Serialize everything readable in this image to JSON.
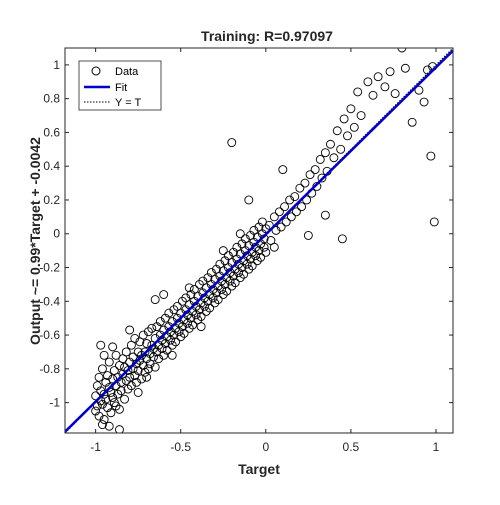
{
  "chart_data": {
    "type": "scatter",
    "title": "Training: R=0.97097",
    "xlabel": "Target",
    "ylabel": "Output ~= 0.99*Target + -0.0042",
    "xlim": [
      -1.18,
      1.1
    ],
    "ylim": [
      -1.18,
      1.1
    ],
    "xticks": [
      -1,
      -0.5,
      0,
      0.5,
      1
    ],
    "xtick_labels": [
      "-1",
      "-0.5",
      "0",
      "0.5",
      "1"
    ],
    "yticks": [
      -1,
      -0.8,
      -0.6,
      -0.4,
      -0.2,
      0,
      0.2,
      0.4,
      0.6,
      0.8,
      1
    ],
    "ytick_labels": [
      "-1",
      "-0.8",
      "-0.6",
      "-0.4",
      "-0.2",
      "0",
      "0.2",
      "0.4",
      "0.6",
      "0.8",
      "1"
    ],
    "grid": false,
    "legend_position": "top-left",
    "series": [
      {
        "name": "Data",
        "marker": "circle-open",
        "color": "#000000",
        "points": [
          [
            -1.0,
            -1.05
          ],
          [
            -1.0,
            -0.96
          ],
          [
            -0.99,
            -1.02
          ],
          [
            -0.99,
            -0.9
          ],
          [
            -0.98,
            -1.08
          ],
          [
            -0.98,
            -0.85
          ],
          [
            -0.97,
            -0.99
          ],
          [
            -0.97,
            -0.93
          ],
          [
            -0.96,
            -1.01
          ],
          [
            -0.96,
            -0.8
          ],
          [
            -0.95,
            -0.95
          ],
          [
            -0.95,
            -1.1
          ],
          [
            -0.94,
            -0.88
          ],
          [
            -0.94,
            -0.98
          ],
          [
            -0.93,
            -0.84
          ],
          [
            -0.93,
            -1.03
          ],
          [
            -0.92,
            -0.91
          ],
          [
            -0.92,
            -0.76
          ],
          [
            -0.91,
            -0.94
          ],
          [
            -0.91,
            -1.06
          ],
          [
            -0.9,
            -0.86
          ],
          [
            -0.9,
            -0.97
          ],
          [
            -0.89,
            -0.81
          ],
          [
            -0.89,
            -1.0
          ],
          [
            -0.88,
            -0.9
          ],
          [
            -0.88,
            -0.72
          ],
          [
            -0.87,
            -0.95
          ],
          [
            -0.87,
            -0.85
          ],
          [
            -0.86,
            -0.78
          ],
          [
            -0.86,
            -1.04
          ],
          [
            -0.85,
            -0.88
          ],
          [
            -0.85,
            -0.93
          ],
          [
            -0.84,
            -0.74
          ],
          [
            -0.84,
            -0.83
          ],
          [
            -0.83,
            -0.98
          ],
          [
            -0.83,
            -0.79
          ],
          [
            -0.82,
            -0.87
          ],
          [
            -0.82,
            -0.7
          ],
          [
            -0.81,
            -0.92
          ],
          [
            -0.81,
            -0.81
          ],
          [
            -0.8,
            -0.76
          ],
          [
            -0.8,
            -0.85
          ],
          [
            -0.79,
            -0.66
          ],
          [
            -0.79,
            -0.9
          ],
          [
            -0.78,
            -0.8
          ],
          [
            -0.78,
            -0.73
          ],
          [
            -0.77,
            -0.84
          ],
          [
            -0.77,
            -0.62
          ],
          [
            -0.76,
            -0.77
          ],
          [
            -0.76,
            -0.88
          ],
          [
            -0.75,
            -0.7
          ],
          [
            -0.75,
            -0.81
          ],
          [
            -0.74,
            -0.75
          ],
          [
            -0.74,
            -0.64
          ],
          [
            -0.73,
            -0.86
          ],
          [
            -0.73,
            -0.72
          ],
          [
            -0.72,
            -0.78
          ],
          [
            -0.72,
            -0.6
          ],
          [
            -0.71,
            -0.82
          ],
          [
            -0.71,
            -0.7
          ],
          [
            -0.7,
            -0.74
          ],
          [
            -0.7,
            -0.65
          ],
          [
            -0.69,
            -0.8
          ],
          [
            -0.69,
            -0.58
          ],
          [
            -0.68,
            -0.71
          ],
          [
            -0.68,
            -0.77
          ],
          [
            -0.67,
            -0.66
          ],
          [
            -0.67,
            -0.56
          ],
          [
            -0.66,
            -0.73
          ],
          [
            -0.66,
            -0.68
          ],
          [
            -0.65,
            -0.62
          ],
          [
            -0.65,
            -0.79
          ],
          [
            -0.64,
            -0.7
          ],
          [
            -0.64,
            -0.55
          ],
          [
            -0.63,
            -0.66
          ],
          [
            -0.63,
            -0.74
          ],
          [
            -0.62,
            -0.6
          ],
          [
            -0.62,
            -0.52
          ],
          [
            -0.61,
            -0.68
          ],
          [
            -0.61,
            -0.63
          ],
          [
            -0.6,
            -0.57
          ],
          [
            -0.6,
            -0.72
          ],
          [
            -0.59,
            -0.65
          ],
          [
            -0.59,
            -0.5
          ],
          [
            -0.58,
            -0.61
          ],
          [
            -0.58,
            -0.69
          ],
          [
            -0.57,
            -0.55
          ],
          [
            -0.57,
            -0.47
          ],
          [
            -0.56,
            -0.63
          ],
          [
            -0.56,
            -0.58
          ],
          [
            -0.55,
            -0.52
          ],
          [
            -0.55,
            -0.66
          ],
          [
            -0.54,
            -0.6
          ],
          [
            -0.54,
            -0.45
          ],
          [
            -0.53,
            -0.56
          ],
          [
            -0.53,
            -0.64
          ],
          [
            -0.52,
            -0.5
          ],
          [
            -0.52,
            -0.43
          ],
          [
            -0.51,
            -0.58
          ],
          [
            -0.51,
            -0.53
          ],
          [
            -0.5,
            -0.47
          ],
          [
            -0.5,
            -0.61
          ],
          [
            -0.49,
            -0.55
          ],
          [
            -0.49,
            -0.4
          ],
          [
            -0.48,
            -0.51
          ],
          [
            -0.48,
            -0.59
          ],
          [
            -0.47,
            -0.45
          ],
          [
            -0.47,
            -0.38
          ],
          [
            -0.46,
            -0.53
          ],
          [
            -0.46,
            -0.48
          ],
          [
            -0.45,
            -0.42
          ],
          [
            -0.45,
            -0.56
          ],
          [
            -0.44,
            -0.5
          ],
          [
            -0.44,
            -0.36
          ],
          [
            -0.43,
            -0.46
          ],
          [
            -0.43,
            -0.54
          ],
          [
            -0.42,
            -0.4
          ],
          [
            -0.42,
            -0.33
          ],
          [
            -0.41,
            -0.48
          ],
          [
            -0.41,
            -0.43
          ],
          [
            -0.4,
            -0.37
          ],
          [
            -0.4,
            -0.51
          ],
          [
            -0.39,
            -0.45
          ],
          [
            -0.39,
            -0.3
          ],
          [
            -0.38,
            -0.41
          ],
          [
            -0.38,
            -0.49
          ],
          [
            -0.37,
            -0.35
          ],
          [
            -0.37,
            -0.28
          ],
          [
            -0.36,
            -0.43
          ],
          [
            -0.36,
            -0.38
          ],
          [
            -0.35,
            -0.32
          ],
          [
            -0.35,
            -0.46
          ],
          [
            -0.34,
            -0.4
          ],
          [
            -0.34,
            -0.26
          ],
          [
            -0.33,
            -0.36
          ],
          [
            -0.33,
            -0.44
          ],
          [
            -0.32,
            -0.3
          ],
          [
            -0.32,
            -0.23
          ],
          [
            -0.31,
            -0.38
          ],
          [
            -0.31,
            -0.33
          ],
          [
            -0.3,
            -0.27
          ],
          [
            -0.3,
            -0.41
          ],
          [
            -0.29,
            -0.35
          ],
          [
            -0.29,
            -0.21
          ],
          [
            -0.28,
            -0.31
          ],
          [
            -0.28,
            -0.39
          ],
          [
            -0.27,
            -0.25
          ],
          [
            -0.27,
            -0.18
          ],
          [
            -0.26,
            -0.33
          ],
          [
            -0.26,
            -0.28
          ],
          [
            -0.25,
            -0.22
          ],
          [
            -0.25,
            -0.36
          ],
          [
            -0.24,
            -0.3
          ],
          [
            -0.24,
            -0.16
          ],
          [
            -0.23,
            -0.26
          ],
          [
            -0.23,
            -0.34
          ],
          [
            -0.22,
            -0.2
          ],
          [
            -0.22,
            -0.13
          ],
          [
            -0.21,
            -0.28
          ],
          [
            -0.21,
            -0.23
          ],
          [
            -0.2,
            -0.17
          ],
          [
            -0.2,
            -0.31
          ],
          [
            -0.19,
            -0.25
          ],
          [
            -0.19,
            -0.11
          ],
          [
            -0.18,
            -0.21
          ],
          [
            -0.18,
            -0.29
          ],
          [
            -0.17,
            -0.15
          ],
          [
            -0.17,
            -0.08
          ],
          [
            -0.16,
            -0.23
          ],
          [
            -0.16,
            -0.18
          ],
          [
            -0.15,
            -0.12
          ],
          [
            -0.15,
            -0.26
          ],
          [
            -0.14,
            -0.2
          ],
          [
            -0.14,
            -0.06
          ],
          [
            -0.13,
            -0.16
          ],
          [
            -0.13,
            -0.24
          ],
          [
            -0.12,
            -0.1
          ],
          [
            -0.12,
            -0.03
          ],
          [
            -0.11,
            -0.18
          ],
          [
            -0.11,
            -0.13
          ],
          [
            -0.1,
            -0.07
          ],
          [
            -0.1,
            -0.21
          ],
          [
            -0.09,
            -0.15
          ],
          [
            -0.09,
            -0.01
          ],
          [
            -0.08,
            -0.11
          ],
          [
            -0.08,
            -0.19
          ],
          [
            -0.07,
            -0.05
          ],
          [
            -0.07,
            0.02
          ],
          [
            -0.06,
            -0.13
          ],
          [
            -0.06,
            -0.08
          ],
          [
            -0.05,
            -0.02
          ],
          [
            -0.05,
            -0.16
          ],
          [
            -0.04,
            -0.1
          ],
          [
            -0.04,
            0.04
          ],
          [
            -0.03,
            -0.06
          ],
          [
            -0.03,
            -0.14
          ],
          [
            -0.02,
            0.0
          ],
          [
            -0.02,
            0.07
          ],
          [
            -0.01,
            -0.08
          ],
          [
            -0.01,
            -0.03
          ],
          [
            0.0,
            0.03
          ],
          [
            0.0,
            -0.11
          ],
          [
            0.02,
            0.05
          ],
          [
            0.03,
            -0.04
          ],
          [
            0.05,
            0.1
          ],
          [
            0.06,
            0.02
          ],
          [
            0.08,
            0.13
          ],
          [
            0.09,
            0.04
          ],
          [
            0.11,
            0.16
          ],
          [
            0.12,
            0.07
          ],
          [
            0.14,
            0.2
          ],
          [
            0.15,
            0.1
          ],
          [
            0.17,
            0.22
          ],
          [
            0.18,
            0.13
          ],
          [
            0.2,
            0.27
          ],
          [
            0.21,
            0.16
          ],
          [
            0.23,
            0.3
          ],
          [
            0.24,
            0.2
          ],
          [
            0.26,
            0.35
          ],
          [
            0.27,
            0.24
          ],
          [
            0.29,
            0.38
          ],
          [
            0.3,
            0.28
          ],
          [
            0.32,
            0.44
          ],
          [
            0.33,
            0.33
          ],
          [
            0.35,
            0.48
          ],
          [
            0.36,
            0.37
          ],
          [
            0.38,
            0.53
          ],
          [
            0.4,
            0.45
          ],
          [
            0.42,
            0.61
          ],
          [
            0.44,
            0.5
          ],
          [
            0.46,
            0.68
          ],
          [
            0.48,
            0.58
          ],
          [
            0.5,
            0.74
          ],
          [
            0.52,
            0.63
          ],
          [
            0.54,
            0.84
          ],
          [
            0.56,
            0.7
          ],
          [
            0.6,
            0.9
          ],
          [
            0.63,
            0.82
          ],
          [
            0.66,
            0.93
          ],
          [
            0.7,
            0.87
          ],
          [
            0.73,
            0.96
          ],
          [
            0.76,
            0.83
          ],
          [
            0.8,
            1.1
          ],
          [
            0.82,
            0.98
          ],
          [
            0.86,
            0.66
          ],
          [
            0.9,
            0.85
          ],
          [
            0.93,
            0.78
          ],
          [
            0.95,
            0.97
          ],
          [
            0.97,
            0.46
          ],
          [
            0.98,
            0.99
          ],
          [
            0.99,
            0.07
          ],
          [
            0.35,
            0.11
          ],
          [
            0.25,
            -0.01
          ],
          [
            0.1,
            0.38
          ],
          [
            -0.2,
            0.54
          ],
          [
            -0.65,
            -0.39
          ],
          [
            -0.6,
            -0.36
          ],
          [
            -0.8,
            -0.57
          ],
          [
            -0.1,
            0.2
          ],
          [
            0.45,
            -0.03
          ],
          [
            -0.92,
            -1.14
          ],
          [
            -0.88,
            -1.02
          ],
          [
            -0.96,
            -1.13
          ],
          [
            -0.86,
            -1.16
          ],
          [
            -0.95,
            -0.72
          ],
          [
            -0.97,
            -0.66
          ],
          [
            -0.9,
            -0.67
          ],
          [
            -0.75,
            -0.94
          ],
          [
            -0.7,
            -0.85
          ],
          [
            -0.55,
            -0.72
          ],
          [
            -0.45,
            -0.32
          ],
          [
            -0.38,
            -0.55
          ],
          [
            -0.25,
            -0.1
          ],
          [
            -0.15,
            0.0
          ],
          [
            0.05,
            -0.08
          ]
        ]
      },
      {
        "name": "Fit",
        "type": "line",
        "color": "#0000cc",
        "slope": 0.99,
        "intercept": -0.0042
      },
      {
        "name": "Y = T",
        "type": "line",
        "style": "dotted",
        "color": "#000000",
        "slope": 1,
        "intercept": 0
      }
    ]
  }
}
